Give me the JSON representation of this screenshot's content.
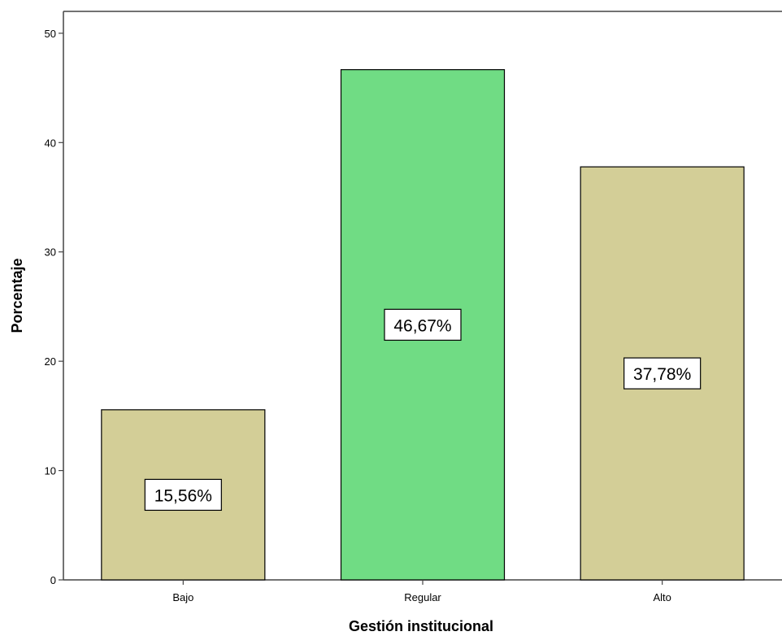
{
  "chart_data": {
    "type": "bar",
    "categories": [
      "Bajo",
      "Regular",
      "Alto"
    ],
    "values": [
      15.56,
      46.67,
      37.78
    ],
    "data_labels": [
      "15,56%",
      "46,67%",
      "37,78%"
    ],
    "title": "",
    "xlabel": "Gestión institucional",
    "ylabel": "Porcentaje",
    "ylim": [
      0,
      52
    ],
    "yticks": [
      0,
      10,
      20,
      30,
      40,
      50
    ],
    "grid": false,
    "legend": "none",
    "colors": {
      "default_bar": "#d3ce97",
      "highlight_bar": "#70dc84",
      "highlight_index": 1,
      "border": "#000000"
    }
  }
}
